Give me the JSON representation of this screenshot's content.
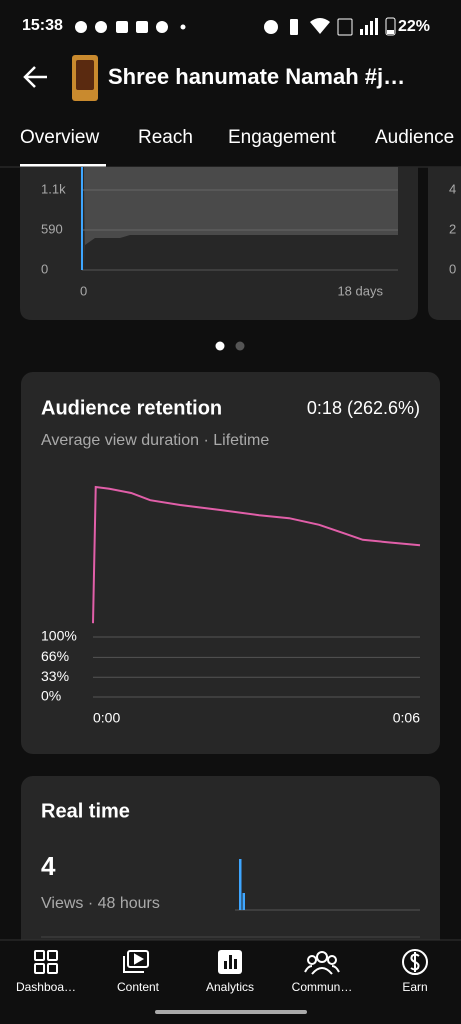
{
  "status_bar": {
    "time": "15:38",
    "battery": "22%"
  },
  "header": {
    "title": "Shree hanumate Namah #j…"
  },
  "tabs": [
    "Overview",
    "Reach",
    "Engagement",
    "Audience"
  ],
  "top_card": {
    "yticks": [
      "1.1k",
      "590",
      "0"
    ],
    "xticks": [
      "0",
      "18 days"
    ]
  },
  "side_card": {
    "yticks": [
      "4",
      "2",
      "0"
    ]
  },
  "retention": {
    "title": "Audience retention",
    "summary": "0:18 (262.6%)",
    "subtitle": "Average view duration · Lifetime",
    "xlim": [
      0,
      6
    ],
    "ylim": [
      0,
      100
    ],
    "yticks": [
      {
        "value": 100,
        "label": "100%"
      },
      {
        "value": 66,
        "label": "66%"
      },
      {
        "value": 33,
        "label": "33%"
      },
      {
        "value": 0,
        "label": "0%"
      }
    ],
    "xticks": [
      {
        "value": 0,
        "label": "0:00"
      },
      {
        "value": 6,
        "label": "0:06"
      }
    ],
    "x": [
      0,
      0.05,
      0.3,
      0.7,
      1.05,
      1.6,
      2.3,
      3.05,
      3.6,
      4.15,
      4.6,
      4.95,
      5.4,
      6
    ],
    "values": [
      123,
      350,
      347,
      340,
      328,
      320,
      312,
      303,
      298,
      287,
      273,
      262,
      258,
      253
    ]
  },
  "realtime": {
    "title": "Real time",
    "views": "4",
    "subtitle": "Views · 48 hours",
    "bars": [
      3,
      1
    ]
  },
  "nav": [
    "Dashboa…",
    "Content",
    "Analytics",
    "Commun…",
    "Earn"
  ]
}
